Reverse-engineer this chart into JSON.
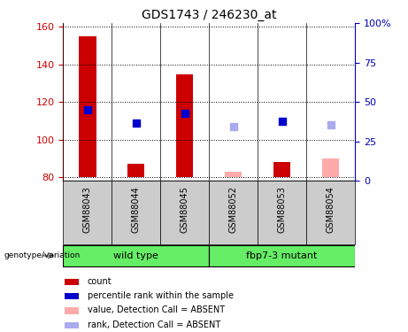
{
  "title": "GDS1743 / 246230_at",
  "samples": [
    "GSM88043",
    "GSM88044",
    "GSM88045",
    "GSM88052",
    "GSM88053",
    "GSM88054"
  ],
  "ylim_left": [
    78,
    162
  ],
  "ylim_right": [
    0,
    100
  ],
  "yticks_left": [
    80,
    100,
    120,
    140,
    160
  ],
  "yticks_right": [
    0,
    25,
    50,
    75,
    100
  ],
  "yticklabels_right": [
    "0",
    "25",
    "50",
    "75",
    "100%"
  ],
  "bar_bottom": 80,
  "bars": [
    {
      "x": 0,
      "value": 155,
      "color": "#cc0000",
      "absent": false
    },
    {
      "x": 1,
      "value": 87,
      "color": "#cc0000",
      "absent": false
    },
    {
      "x": 2,
      "value": 135,
      "color": "#cc0000",
      "absent": false
    },
    {
      "x": 3,
      "value": 83,
      "color": "#ffaaaa",
      "absent": true
    },
    {
      "x": 4,
      "value": 88,
      "color": "#cc0000",
      "absent": false
    },
    {
      "x": 5,
      "value": 90,
      "color": "#ffaaaa",
      "absent": true
    }
  ],
  "rank_dots": [
    {
      "x": 0,
      "value": 116,
      "color": "#0000cc",
      "absent": false
    },
    {
      "x": 1,
      "value": 109,
      "color": "#0000cc",
      "absent": false
    },
    {
      "x": 2,
      "value": 114,
      "color": "#0000cc",
      "absent": false
    },
    {
      "x": 3,
      "value": 107,
      "color": "#aaaaee",
      "absent": true
    },
    {
      "x": 4,
      "value": 110,
      "color": "#0000cc",
      "absent": false
    },
    {
      "x": 5,
      "value": 108,
      "color": "#aaaaee",
      "absent": true
    }
  ],
  "legend_items": [
    {
      "label": "count",
      "color": "#cc0000"
    },
    {
      "label": "percentile rank within the sample",
      "color": "#0000cc"
    },
    {
      "label": "value, Detection Call = ABSENT",
      "color": "#ffaaaa"
    },
    {
      "label": "rank, Detection Call = ABSENT",
      "color": "#aaaaee"
    }
  ],
  "bar_width": 0.35,
  "dot_size": 40,
  "left_axis_color": "#cc0000",
  "right_axis_color": "#0000bb",
  "group_row_color": "#66ee66",
  "sample_row_color": "#cccccc",
  "group_boundaries": [
    {
      "start": 0,
      "end": 2,
      "name": "wild type"
    },
    {
      "start": 3,
      "end": 5,
      "name": "fbp7-3 mutant"
    }
  ]
}
